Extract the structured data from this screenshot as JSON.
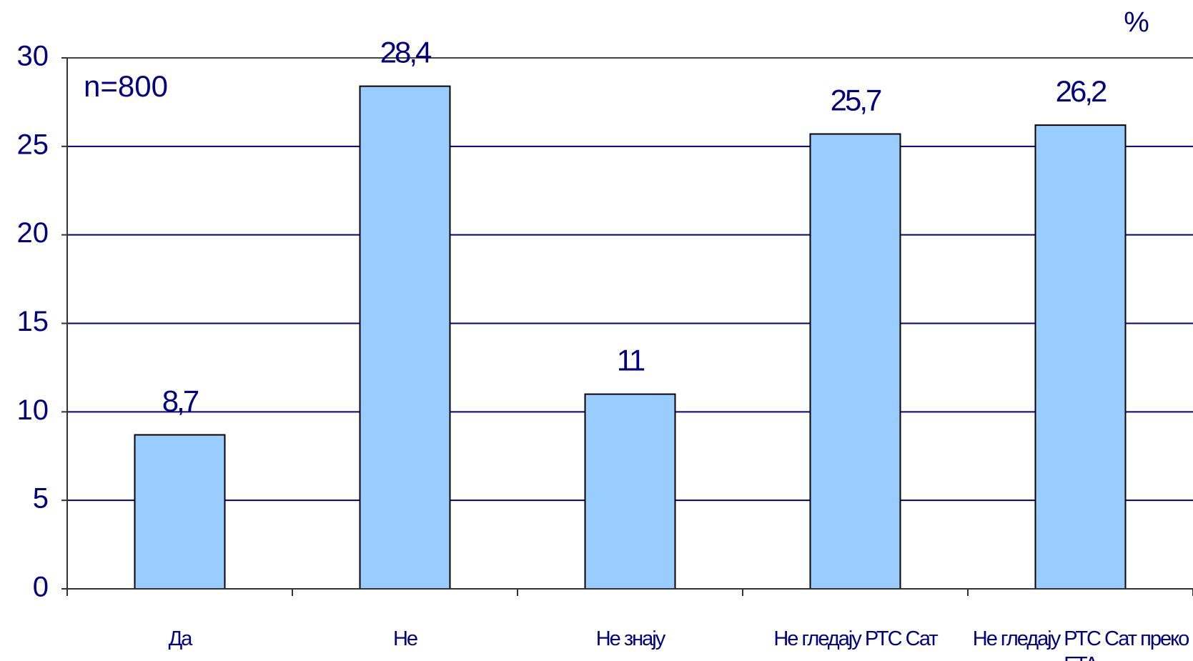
{
  "chart_data": {
    "type": "bar",
    "categories": [
      "Да",
      "Не",
      "Не знају",
      "Не гледају РТС Сат",
      "Не гледају РТС Сат преко FTA"
    ],
    "values": [
      8.7,
      28.4,
      11,
      25.7,
      26.2
    ],
    "value_labels": [
      "8,7",
      "28,4",
      "11",
      "25,7",
      "26,2"
    ],
    "color": "#99ccff",
    "ylim": [
      0,
      30
    ],
    "yticks": [
      0,
      5,
      10,
      15,
      20,
      25,
      30
    ],
    "grid": true,
    "annotations": [
      "n=800",
      "%"
    ]
  }
}
